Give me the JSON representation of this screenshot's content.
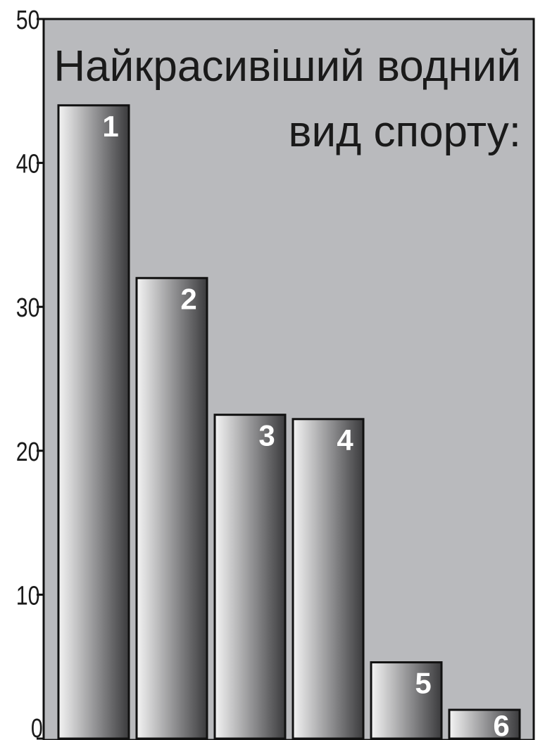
{
  "chart_data": {
    "type": "bar",
    "title_lines": [
      "Найкрасивіший водний",
      "вид спорту:"
    ],
    "categories": [
      "1",
      "2",
      "3",
      "4",
      "5",
      "6"
    ],
    "values": [
      44,
      32,
      22.5,
      22.2,
      5.3,
      2
    ],
    "ylim": [
      0,
      50
    ],
    "yticks": [
      "0",
      "10",
      "20",
      "30",
      "40",
      "50"
    ],
    "xlabel": "",
    "ylabel": "",
    "grid": false,
    "colors": {
      "plot_background": "#b9babd",
      "bar_light": "#f4f4f4",
      "bar_mid": "#8e8e90",
      "bar_dark": "#3b3b3d",
      "outline": "#111111"
    }
  }
}
